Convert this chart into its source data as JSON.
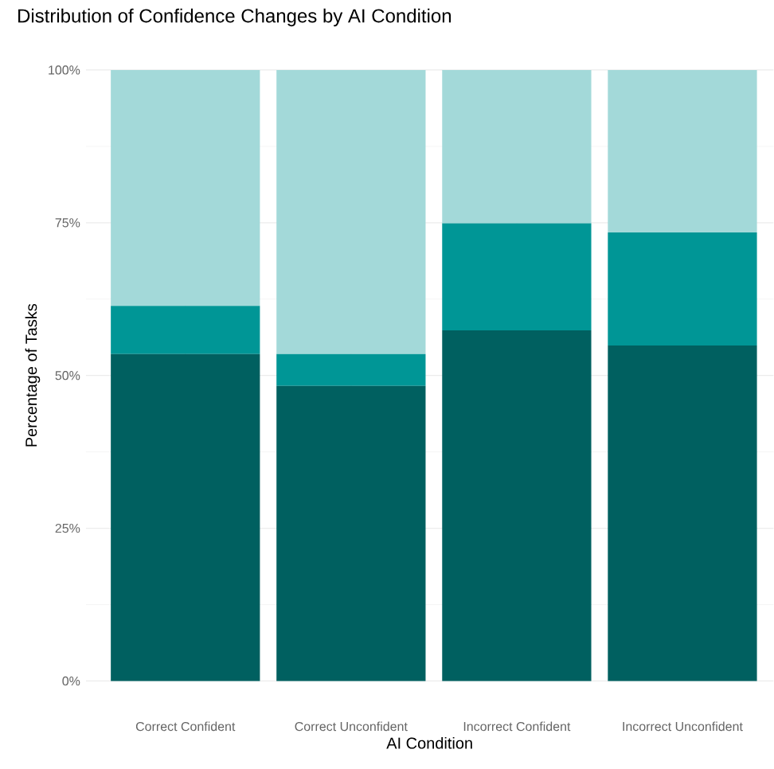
{
  "chart_data": {
    "type": "bar",
    "stacked": true,
    "title": "Distribution of Confidence Changes by AI Condition",
    "xlabel": "AI Condition",
    "ylabel": "Percentage of Tasks",
    "categories": [
      "Correct Confident",
      "Correct Unconfident",
      "Incorrect Confident",
      "Incorrect Unconfident"
    ],
    "series": [
      {
        "color": "#006060",
        "values": [
          53.5,
          48.3,
          57.4,
          54.9
        ]
      },
      {
        "color": "#009696",
        "values": [
          7.9,
          5.2,
          17.5,
          18.5
        ]
      },
      {
        "color": "#a3d9d9",
        "values": [
          38.6,
          46.5,
          25.1,
          26.6
        ]
      }
    ],
    "ylim": [
      0,
      100
    ],
    "yticks": [
      {
        "value": 0,
        "label": "0%"
      },
      {
        "value": 25,
        "label": "25%"
      },
      {
        "value": 50,
        "label": "50%"
      },
      {
        "value": 75,
        "label": "75%"
      },
      {
        "value": 100,
        "label": "100%"
      }
    ],
    "grid": true
  }
}
